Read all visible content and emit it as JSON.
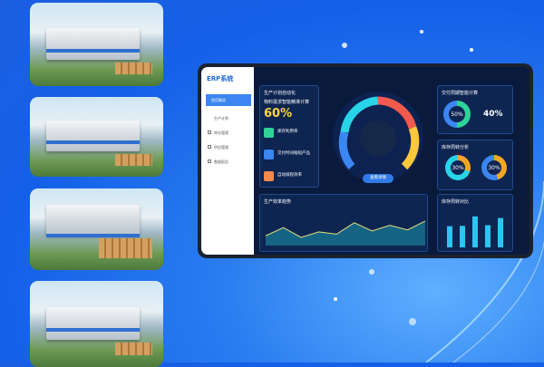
{
  "tablet": {
    "logo": "ERP系统",
    "sidebar": [
      {
        "label": "首页概览",
        "active": true
      },
      {
        "label": "生产计划"
      },
      {
        "label": "库存管理"
      },
      {
        "label": "供应管理"
      },
      {
        "label": "数据报告"
      }
    ],
    "production": {
      "title": "生产计划自动化",
      "subtitle": "物料需求智能精准计算",
      "value": "60%",
      "items": [
        {
          "label": "库存利用率",
          "color": "#2fd39a"
        },
        {
          "label": "交付时间缩短产品",
          "color": "#3b86f0"
        },
        {
          "label": "自动排程效率",
          "color": "#f28a4e"
        }
      ]
    },
    "gauge": {
      "button": "查看详情",
      "colors": [
        "#3b86f0",
        "#28d4e8",
        "#f25a4e",
        "#ffc83a"
      ]
    },
    "delivery": {
      "title": "交付周期智能计算",
      "ring_value": "50%",
      "value": "40%"
    },
    "inventory": {
      "title": "库存周转分析",
      "rings": [
        "30%",
        "30%"
      ]
    },
    "trend": {
      "title": "生产效率趋势",
      "values": [
        30,
        55,
        25,
        42,
        35,
        70,
        45,
        62,
        48,
        75
      ]
    },
    "bars": {
      "title": "库存周转对比",
      "values": [
        65,
        66,
        95,
        68,
        90
      ]
    }
  },
  "colors": {
    "background": "#1b5fe0",
    "screen": "#0a1a3c",
    "accent": "#28d4e8"
  }
}
